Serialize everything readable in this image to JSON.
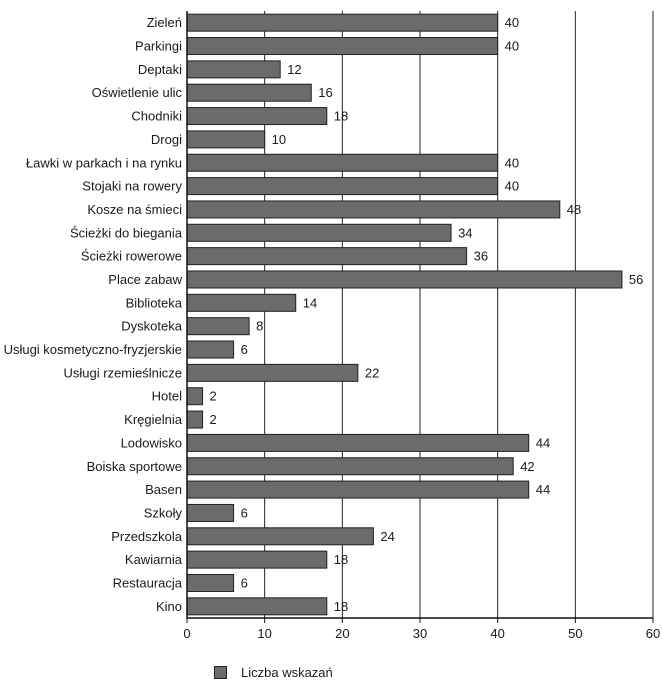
{
  "chart_data": {
    "type": "bar",
    "orientation": "horizontal",
    "categories": [
      "Zieleń",
      "Parkingi",
      "Deptaki",
      "Oświetlenie ulic",
      "Chodniki",
      "Drogi",
      "Ławki w parkach i na rynku",
      "Stojaki na rowery",
      "Kosze na śmieci",
      "Ścieżki do biegania",
      "Ścieżki rowerowe",
      "Place zabaw",
      "Biblioteka",
      "Dyskoteka",
      "Usługi kosmetyczno-fryzjerskie",
      "Usługi rzemieślnicze",
      "Hotel",
      "Kręgielnia",
      "Lodowisko",
      "Boiska sportowe",
      "Basen",
      "Szkoły",
      "Przedszkola",
      "Kawiarnia",
      "Restauracja",
      "Kino"
    ],
    "series": [
      {
        "name": "Liczba wskazań",
        "values": [
          40,
          40,
          12,
          16,
          18,
          10,
          40,
          40,
          48,
          34,
          36,
          56,
          14,
          8,
          6,
          22,
          2,
          2,
          44,
          42,
          44,
          6,
          24,
          18,
          6,
          18
        ]
      }
    ],
    "xlim": [
      0,
      60
    ],
    "xticks": [
      "0",
      "10",
      "20",
      "30",
      "40",
      "50",
      "60"
    ],
    "grid": "vertical",
    "legend_position": "bottom-center",
    "colors": {
      "bar": "#6b6b6b",
      "bar_stroke": "#222222",
      "grid": "#222222"
    }
  },
  "legend": {
    "label": "Liczba wskazań"
  }
}
